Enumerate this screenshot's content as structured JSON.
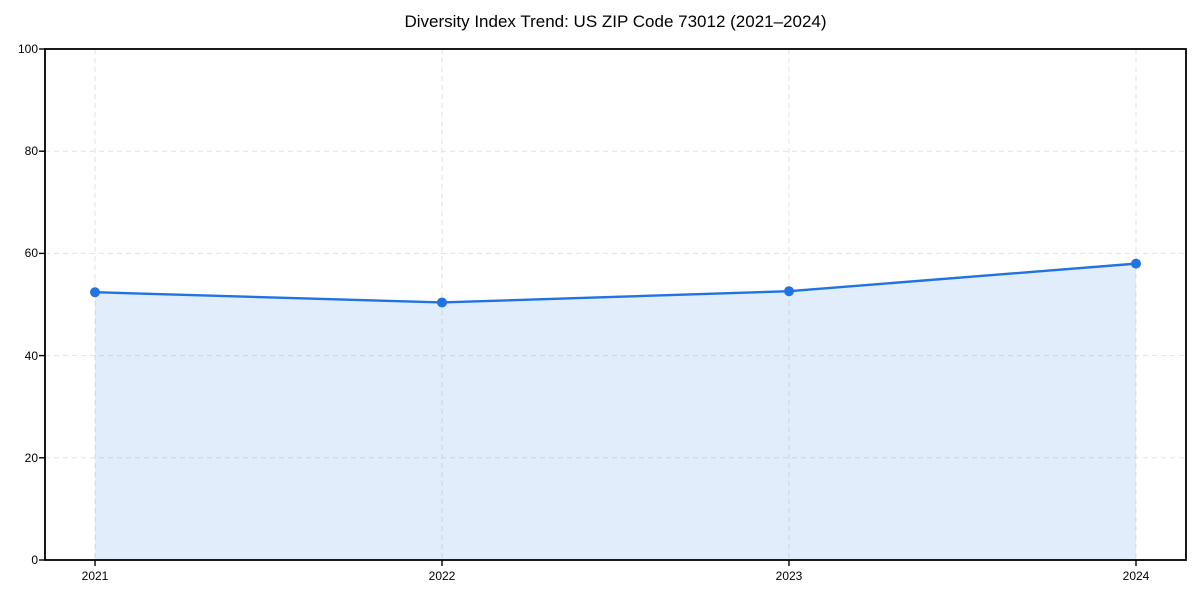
{
  "title": "Diversity Index Trend: US ZIP Code 73012 (2021–2024)",
  "chart_data": {
    "type": "area",
    "title": "Diversity Index Trend: US ZIP Code 73012 (2021–2024)",
    "series_name": "Diversity Index",
    "categories": [
      "2021",
      "2022",
      "2023",
      "2024"
    ],
    "values": [
      52.4,
      50.4,
      52.6,
      58.0
    ],
    "xlabel": "",
    "ylabel": "",
    "ylim": [
      0,
      100
    ],
    "yticks": [
      0,
      20,
      40,
      60,
      80,
      100
    ],
    "grid": "dashed-both-axes",
    "legend": "none",
    "colors": {
      "line": "#2272e0",
      "marker": "#2272e0",
      "fill": "rgba(34,114,224,0.13)",
      "grid": "#e2e2e2",
      "spine": "#000000",
      "tick": "#000000",
      "text": "#000000",
      "background": "#ffffff"
    }
  }
}
